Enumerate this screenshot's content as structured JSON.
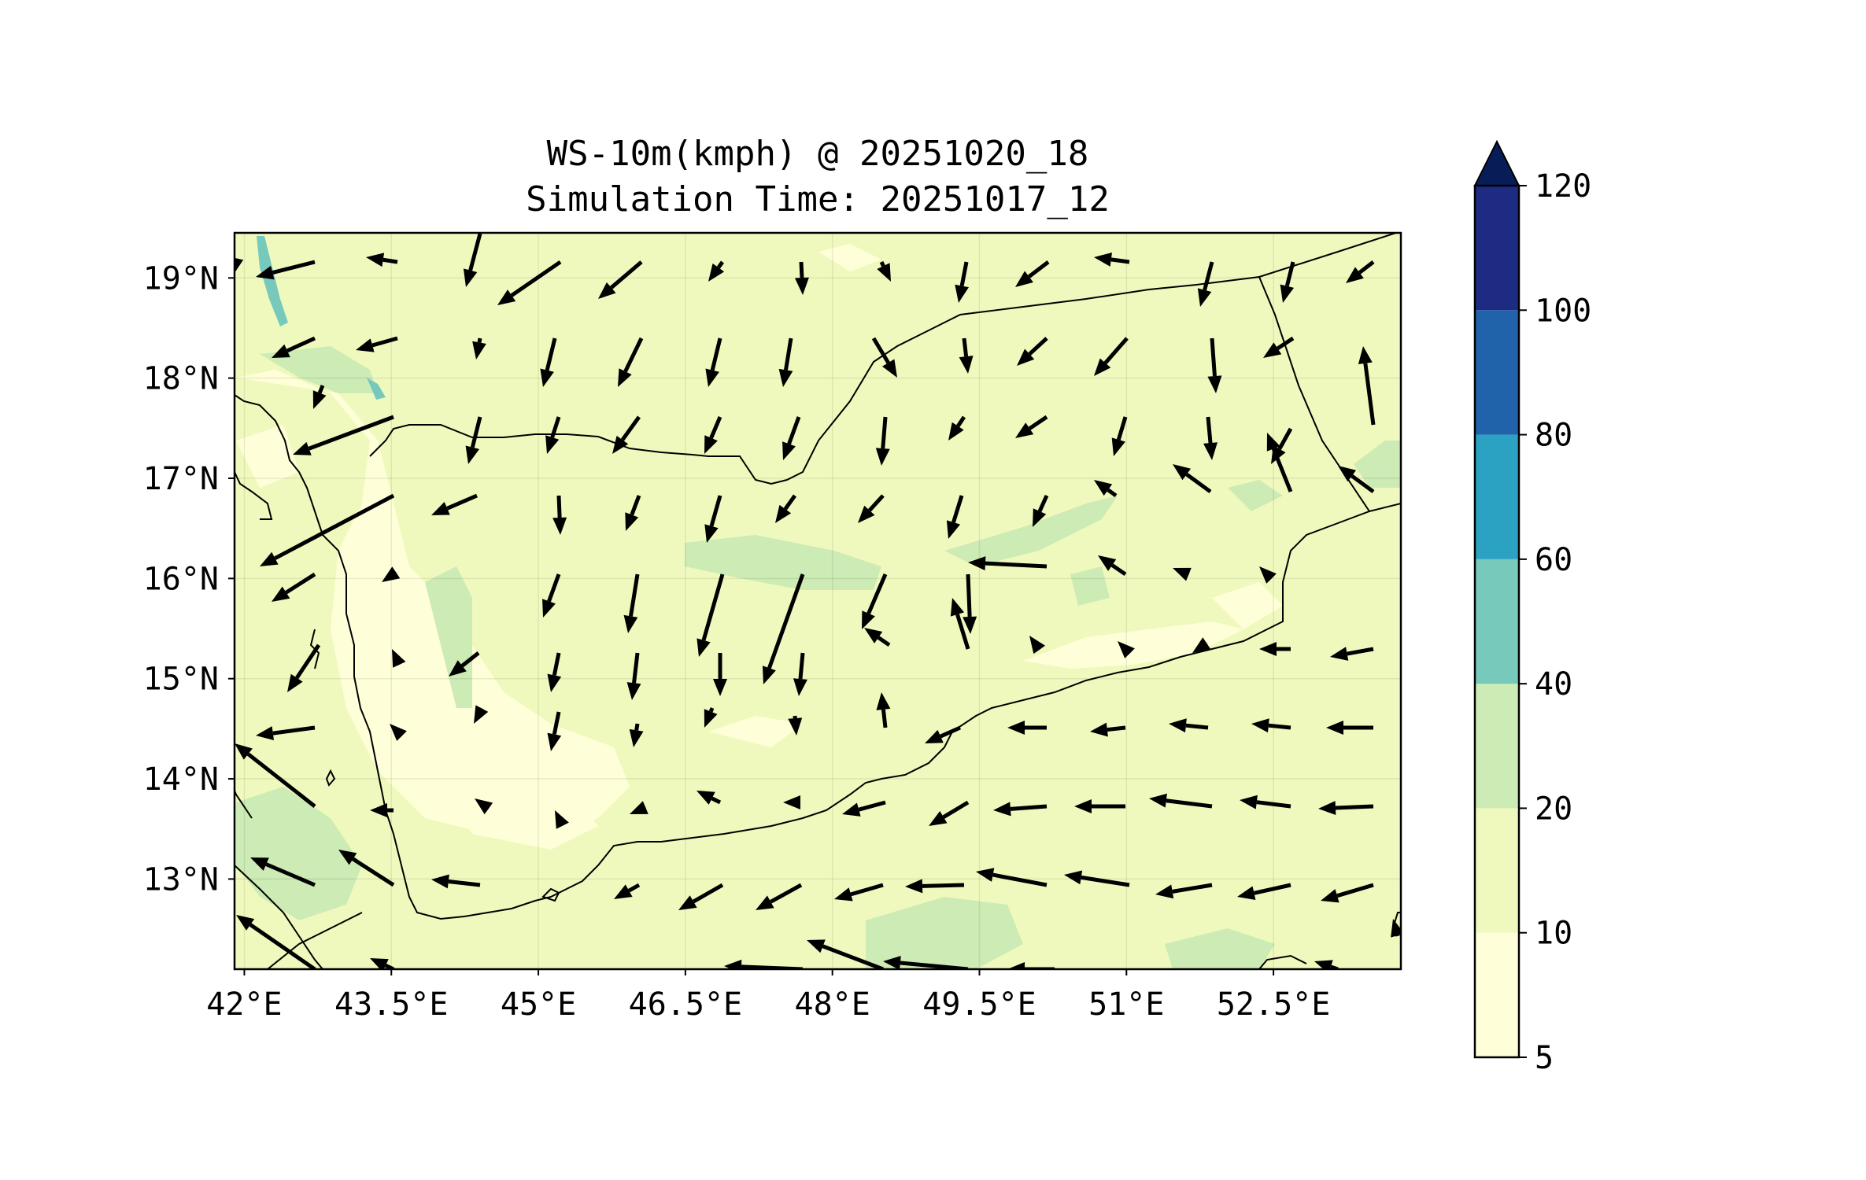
{
  "map": {
    "title": "WS-10m(kmph) @ 20251020_18",
    "subtitle": "Simulation Time: 20251017_12",
    "lon_ticks": [
      "42°E",
      "43.5°E",
      "45°E",
      "46.5°E",
      "48°E",
      "49.5°E",
      "51°E",
      "52.5°E"
    ],
    "lat_ticks": [
      "19°N",
      "18°N",
      "17°N",
      "16°N",
      "15°N",
      "14°N",
      "13°N"
    ],
    "extent": {
      "lon": [
        41.9,
        53.8
      ],
      "lat": [
        12.1,
        19.45
      ]
    },
    "background_color": "#f0f9bd"
  },
  "colorbar": {
    "levels": [
      "5",
      "10",
      "20",
      "40",
      "60",
      "80",
      "100",
      "120"
    ],
    "colors": [
      "#feffd8",
      "#f0f9bd",
      "#cdebb4",
      "#76c9bb",
      "#2ca2c2",
      "#2163aa",
      "#1d2c82"
    ],
    "extend_color": "#081d58"
  }
}
